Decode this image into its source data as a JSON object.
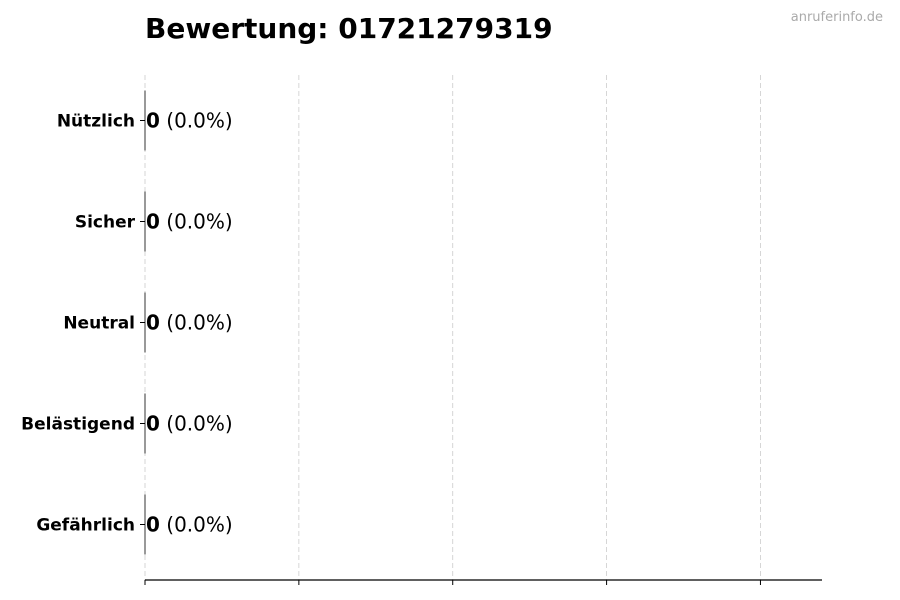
{
  "watermark": "anruferinfo.de",
  "chart_data": {
    "type": "bar",
    "orientation": "horizontal",
    "title": "Bewertung: 01721279319",
    "categories": [
      "Nützlich",
      "Sicher",
      "Neutral",
      "Belästigend",
      "Gefährlich"
    ],
    "values": [
      0,
      0,
      0,
      0,
      0
    ],
    "data_labels": [
      {
        "count": "0",
        "pct": "(0.0%)"
      },
      {
        "count": "0",
        "pct": "(0.0%)"
      },
      {
        "count": "0",
        "pct": "(0.0%)"
      },
      {
        "count": "0",
        "pct": "(0.0%)"
      },
      {
        "count": "0",
        "pct": "(0.0%)"
      }
    ],
    "xlabel": "",
    "ylabel": "",
    "xlim": [
      0,
      4.4
    ],
    "xticks": [
      0,
      1,
      2,
      3,
      4
    ],
    "xtick_labels_shown": false,
    "grid": "x dashed",
    "bar_edge_color": "#333333"
  }
}
